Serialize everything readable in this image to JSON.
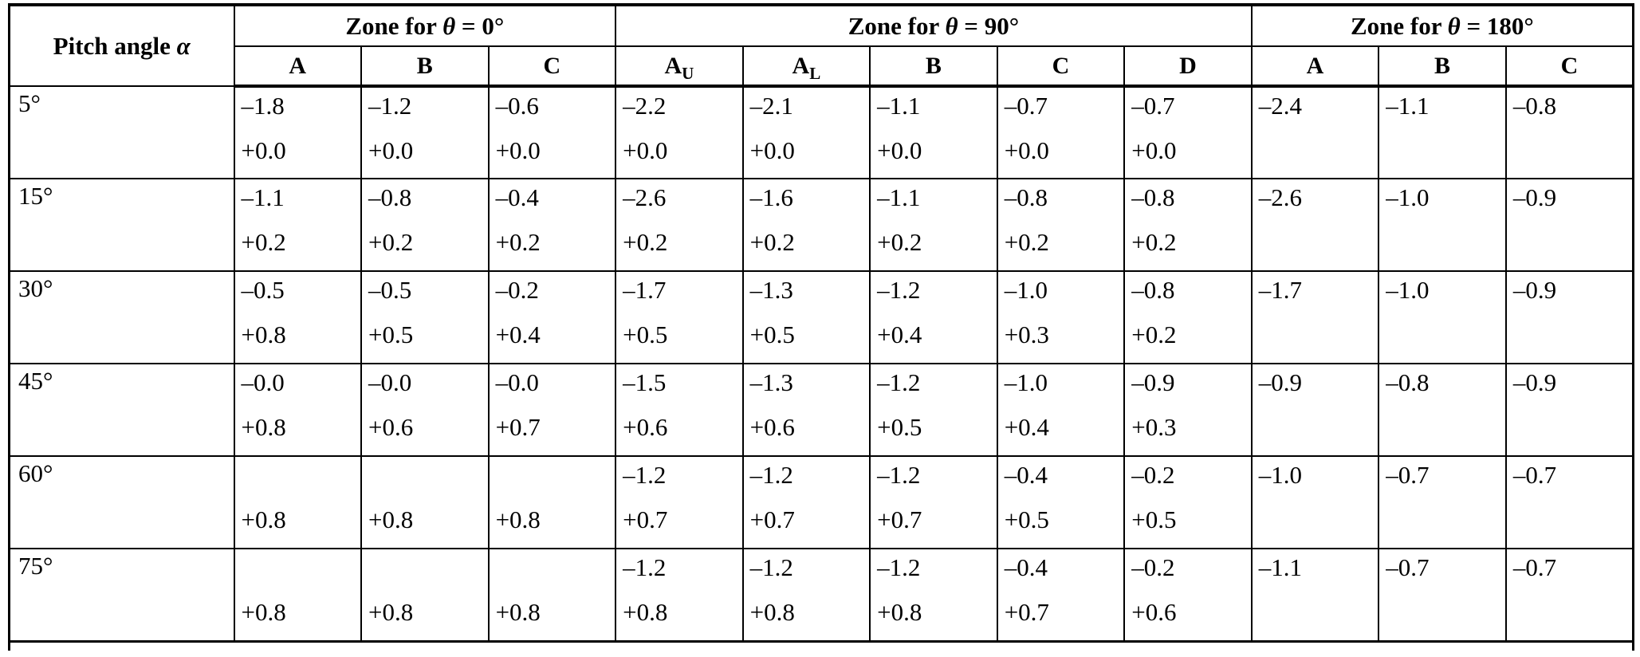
{
  "table": {
    "corner_header": {
      "prefix": "Pitch angle ",
      "symbol": "α"
    },
    "zone_groups": [
      {
        "prefix": "Zone for ",
        "symbol": "θ",
        "suffix": " = 0°",
        "colspan": 3
      },
      {
        "prefix": "Zone for ",
        "symbol": "θ",
        "suffix": " = 90°",
        "colspan": 5
      },
      {
        "prefix": "Zone for ",
        "symbol": "θ",
        "suffix": " = 180°",
        "colspan": 3
      }
    ],
    "sub_headers": [
      {
        "base": "A",
        "sub": ""
      },
      {
        "base": "B",
        "sub": ""
      },
      {
        "base": "C",
        "sub": ""
      },
      {
        "base": "A",
        "sub": "U"
      },
      {
        "base": "A",
        "sub": "L"
      },
      {
        "base": "B",
        "sub": ""
      },
      {
        "base": "C",
        "sub": ""
      },
      {
        "base": "D",
        "sub": ""
      },
      {
        "base": "A",
        "sub": ""
      },
      {
        "base": "B",
        "sub": ""
      },
      {
        "base": "C",
        "sub": ""
      }
    ],
    "rows": [
      {
        "pitch": "5°",
        "cells": [
          [
            "–1.8",
            "+0.0"
          ],
          [
            "–1.2",
            "+0.0"
          ],
          [
            "–0.6",
            "+0.0"
          ],
          [
            "–2.2",
            "+0.0"
          ],
          [
            "–2.1",
            "+0.0"
          ],
          [
            "–1.1",
            "+0.0"
          ],
          [
            "–0.7",
            "+0.0"
          ],
          [
            "–0.7",
            "+0.0"
          ],
          [
            "–2.4",
            ""
          ],
          [
            "–1.1",
            ""
          ],
          [
            "–0.8",
            ""
          ]
        ]
      },
      {
        "pitch": "15°",
        "cells": [
          [
            "–1.1",
            "+0.2"
          ],
          [
            "–0.8",
            "+0.2"
          ],
          [
            "–0.4",
            "+0.2"
          ],
          [
            "–2.6",
            "+0.2"
          ],
          [
            "–1.6",
            "+0.2"
          ],
          [
            "–1.1",
            "+0.2"
          ],
          [
            "–0.8",
            "+0.2"
          ],
          [
            "–0.8",
            "+0.2"
          ],
          [
            "–2.6",
            ""
          ],
          [
            "–1.0",
            ""
          ],
          [
            "–0.9",
            ""
          ]
        ]
      },
      {
        "pitch": "30°",
        "cells": [
          [
            "–0.5",
            "+0.8"
          ],
          [
            "–0.5",
            "+0.5"
          ],
          [
            "–0.2",
            "+0.4"
          ],
          [
            "–1.7",
            "+0.5"
          ],
          [
            "–1.3",
            "+0.5"
          ],
          [
            "–1.2",
            "+0.4"
          ],
          [
            "–1.0",
            "+0.3"
          ],
          [
            "–0.8",
            "+0.2"
          ],
          [
            "–1.7",
            ""
          ],
          [
            "–1.0",
            ""
          ],
          [
            "–0.9",
            ""
          ]
        ]
      },
      {
        "pitch": "45°",
        "cells": [
          [
            "–0.0",
            "+0.8"
          ],
          [
            "–0.0",
            "+0.6"
          ],
          [
            "–0.0",
            "+0.7"
          ],
          [
            "–1.5",
            "+0.6"
          ],
          [
            "–1.3",
            "+0.6"
          ],
          [
            "–1.2",
            "+0.5"
          ],
          [
            "–1.0",
            "+0.4"
          ],
          [
            "–0.9",
            "+0.3"
          ],
          [
            "–0.9",
            ""
          ],
          [
            "–0.8",
            ""
          ],
          [
            "–0.9",
            ""
          ]
        ]
      },
      {
        "pitch": "60°",
        "cells": [
          [
            "",
            "+0.8"
          ],
          [
            "",
            "+0.8"
          ],
          [
            "",
            "+0.8"
          ],
          [
            "–1.2",
            "+0.7"
          ],
          [
            "–1.2",
            "+0.7"
          ],
          [
            "–1.2",
            "+0.7"
          ],
          [
            "–0.4",
            "+0.5"
          ],
          [
            "–0.2",
            "+0.5"
          ],
          [
            "–1.0",
            ""
          ],
          [
            "–0.7",
            ""
          ],
          [
            "–0.7",
            ""
          ]
        ]
      },
      {
        "pitch": "75°",
        "cells": [
          [
            "",
            "+0.8"
          ],
          [
            "",
            "+0.8"
          ],
          [
            "",
            "+0.8"
          ],
          [
            "–1.2",
            "+0.8"
          ],
          [
            "–1.2",
            "+0.8"
          ],
          [
            "–1.2",
            "+0.8"
          ],
          [
            "–0.4",
            "+0.7"
          ],
          [
            "–0.2",
            "+0.6"
          ],
          [
            "–1.1",
            ""
          ],
          [
            "–0.7",
            ""
          ],
          [
            "–0.7",
            ""
          ]
        ]
      }
    ]
  }
}
